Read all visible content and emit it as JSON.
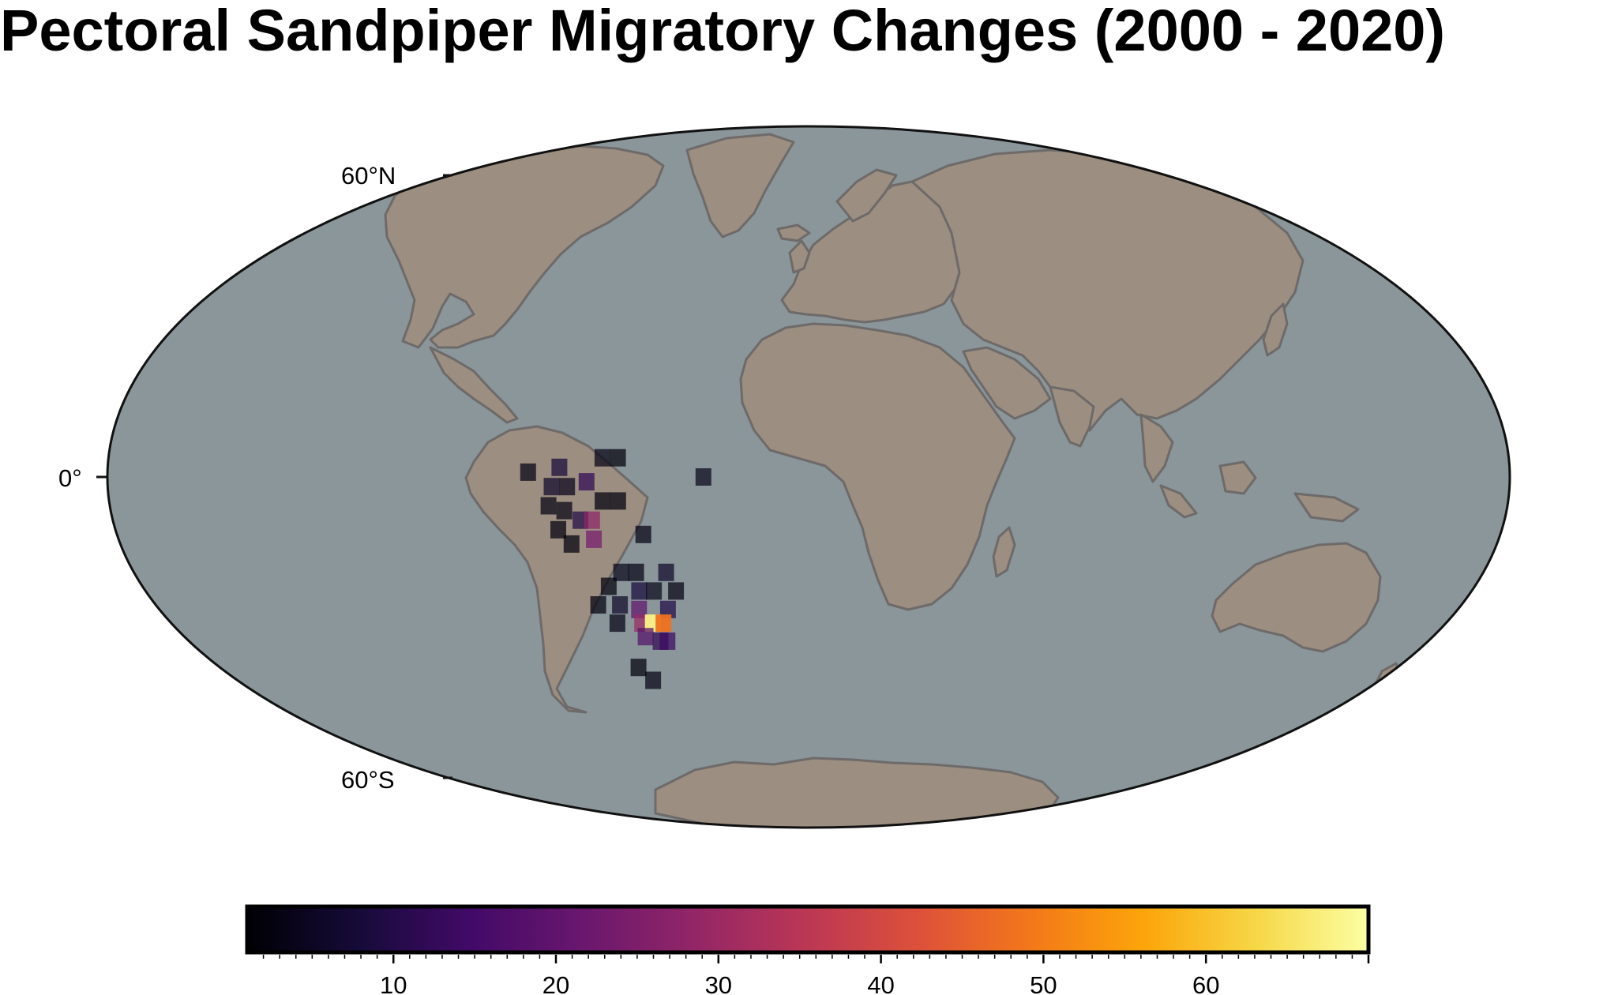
{
  "title": "Pectoral Sandpiper Migratory Changes (2000 - 2020)",
  "graticule_labels": [
    "60°N",
    "0°",
    "60°S"
  ],
  "colors": {
    "ocean": "#8a969a",
    "land": "#9c8e80",
    "coastline": "#6e6a6a",
    "frame": "#111111"
  },
  "colorbar": {
    "colormap": "inferno",
    "range": [
      1,
      70
    ],
    "tick_labels": [
      "10",
      "20",
      "30",
      "40",
      "50",
      "60"
    ],
    "tick_values": [
      10,
      20,
      30,
      40,
      50,
      60
    ]
  },
  "observation_cells": [
    {
      "lon": -82,
      "lat": 1,
      "value": 3
    },
    {
      "lon": -63,
      "lat": 4,
      "value": 3
    },
    {
      "lon": -59,
      "lat": 4,
      "value": 2
    },
    {
      "lon": -74,
      "lat": 2,
      "value": 8
    },
    {
      "lon": -76,
      "lat": -2,
      "value": 6
    },
    {
      "lon": -72,
      "lat": -2,
      "value": 4
    },
    {
      "lon": -67,
      "lat": -1,
      "value": 12
    },
    {
      "lon": -63,
      "lat": -5,
      "value": 2
    },
    {
      "lon": -59,
      "lat": -5,
      "value": 2
    },
    {
      "lon": -77,
      "lat": -6,
      "value": 3
    },
    {
      "lon": -73,
      "lat": -7,
      "value": 3
    },
    {
      "lon": -69,
      "lat": -9,
      "value": 10
    },
    {
      "lon": -66,
      "lat": -9,
      "value": 28
    },
    {
      "lon": -66,
      "lat": -13,
      "value": 24
    },
    {
      "lon": -75,
      "lat": -11,
      "value": 2
    },
    {
      "lon": -72,
      "lat": -14,
      "value": 2
    },
    {
      "lon": -53,
      "lat": -12,
      "value": 3
    },
    {
      "lon": -37,
      "lat": 0,
      "value": 4
    },
    {
      "lon": -60,
      "lat": -20,
      "value": 4
    },
    {
      "lon": -56,
      "lat": -20,
      "value": 3
    },
    {
      "lon": -48,
      "lat": -20,
      "value": 6
    },
    {
      "lon": -64,
      "lat": -23,
      "value": 2
    },
    {
      "lon": -56,
      "lat": -24,
      "value": 8
    },
    {
      "lon": -52,
      "lat": -24,
      "value": 4
    },
    {
      "lon": -46,
      "lat": -24,
      "value": 3
    },
    {
      "lon": -68,
      "lat": -27,
      "value": 2
    },
    {
      "lon": -62,
      "lat": -27,
      "value": 6
    },
    {
      "lon": -57,
      "lat": -28,
      "value": 20
    },
    {
      "lon": -49,
      "lat": -28,
      "value": 10
    },
    {
      "lon": -64,
      "lat": -31,
      "value": 3
    },
    {
      "lon": -57,
      "lat": -31,
      "value": 30
    },
    {
      "lon": -54,
      "lat": -31,
      "value": 68
    },
    {
      "lon": -51,
      "lat": -31,
      "value": 48
    },
    {
      "lon": -57,
      "lat": -34,
      "value": 18
    },
    {
      "lon": -53,
      "lat": -35,
      "value": 12
    },
    {
      "lon": -51,
      "lat": -35,
      "value": 14
    },
    {
      "lon": -62,
      "lat": -41,
      "value": 2
    },
    {
      "lon": -59,
      "lat": -44,
      "value": 3
    }
  ]
}
